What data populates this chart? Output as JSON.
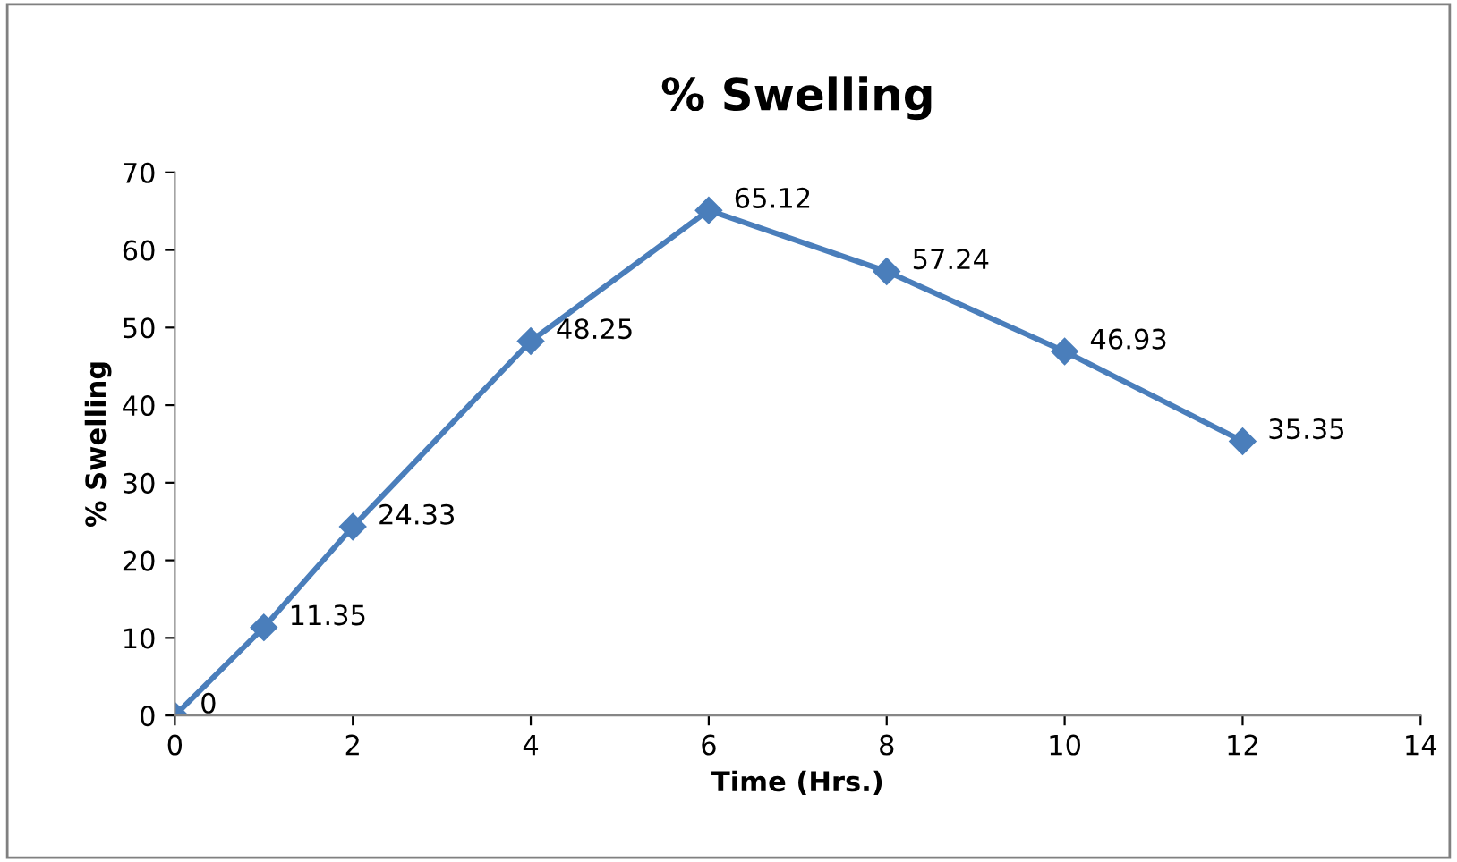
{
  "chart_data": {
    "type": "line",
    "title": "% Swelling",
    "xlabel": "Time (Hrs.)",
    "ylabel": "% Swelling",
    "x": [
      0,
      1,
      2,
      4,
      6,
      8,
      10,
      12
    ],
    "series": [
      {
        "color": "#4a7ebb",
        "values": [
          0,
          11.35,
          24.33,
          48.25,
          65.12,
          57.24,
          46.93,
          35.35
        ]
      }
    ],
    "xlim": [
      0,
      14
    ],
    "xticks": [
      0,
      2,
      4,
      6,
      8,
      10,
      12,
      14
    ],
    "ylim": [
      0,
      70
    ],
    "yticks": [
      0,
      10,
      20,
      30,
      40,
      50,
      60,
      70
    ],
    "grid": false,
    "legend": false,
    "marker": "diamond",
    "line_style": "solid",
    "data_labels": true
  }
}
